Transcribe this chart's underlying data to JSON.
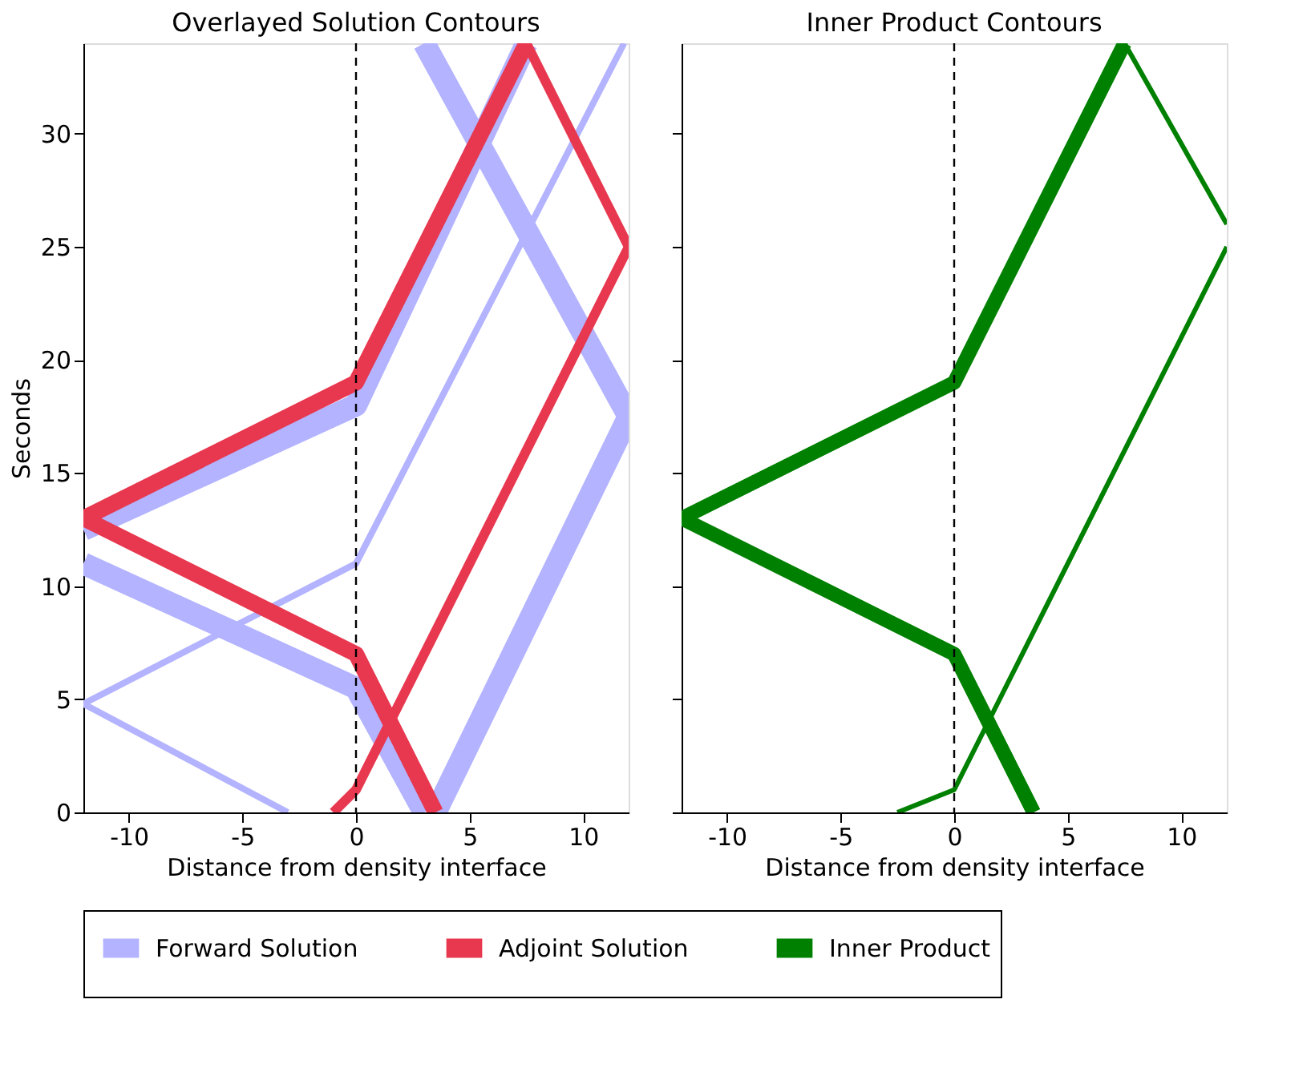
{
  "chart_data": [
    {
      "type": "line",
      "title": "Overlayed Solution Contours",
      "xlabel": "Distance from density interface",
      "ylabel": "Seconds",
      "xlim": [
        -12,
        12
      ],
      "xticks": [
        -10,
        -5,
        0,
        5,
        10
      ],
      "ylim": [
        0,
        34
      ],
      "yticks": [
        0,
        5,
        10,
        15,
        20,
        25,
        30
      ],
      "legend": "bottom",
      "grid": false,
      "ref_lines": [
        {
          "axis": "x",
          "value": 0,
          "line_style": "dashed",
          "color": "#000000"
        }
      ],
      "series": [
        {
          "name": "Forward Solution",
          "color": "#b3b3ff",
          "x": [
            -12,
            0,
            7.5
          ],
          "values": [
            12.5,
            18,
            34
          ]
        },
        {
          "color": "#b3b3ff",
          "x": [
            3,
            12,
            3.5
          ],
          "values": [
            34,
            17.5,
            0
          ]
        },
        {
          "color": "#b3b3ff",
          "x": [
            -12,
            0,
            3
          ],
          "values": [
            11,
            5.5,
            0
          ]
        },
        {
          "color": "#b3b3ff",
          "x": [
            -3,
            -12,
            0,
            11.8
          ],
          "values": [
            0,
            4.8,
            11,
            34
          ]
        },
        {
          "name": "Adjoint Solution",
          "color": "#e8384f",
          "x": [
            3.5,
            0,
            -12,
            0,
            7.5
          ],
          "values": [
            0,
            7,
            13,
            19,
            34
          ]
        },
        {
          "color": "#e8384f",
          "x": [
            7.5,
            12,
            0,
            -1
          ],
          "values": [
            34,
            25,
            1,
            0
          ]
        }
      ]
    },
    {
      "type": "line",
      "title": "Inner Product Contours",
      "xlabel": "Distance from density interface",
      "xlim": [
        -12,
        12
      ],
      "xticks": [
        -10,
        -5,
        0,
        5,
        10
      ],
      "ylim": [
        0,
        34
      ],
      "yticks": [
        0,
        5,
        10,
        15,
        20,
        25,
        30
      ],
      "tick_labels": "x",
      "legend": "bottom",
      "grid": false,
      "ref_lines": [
        {
          "axis": "x",
          "value": 0,
          "line_style": "dashed",
          "color": "#000000"
        }
      ],
      "series": [
        {
          "name": "Inner Product",
          "color": "#008000",
          "x": [
            3.5,
            0,
            -12,
            0,
            7.5
          ],
          "values": [
            0,
            7,
            13,
            19,
            34
          ]
        },
        {
          "color": "#008000",
          "x": [
            7.5,
            12
          ],
          "values": [
            34,
            26
          ]
        },
        {
          "color": "#008000",
          "x": [
            12,
            0,
            -2.5
          ],
          "values": [
            25,
            1,
            0
          ]
        }
      ]
    }
  ]
}
